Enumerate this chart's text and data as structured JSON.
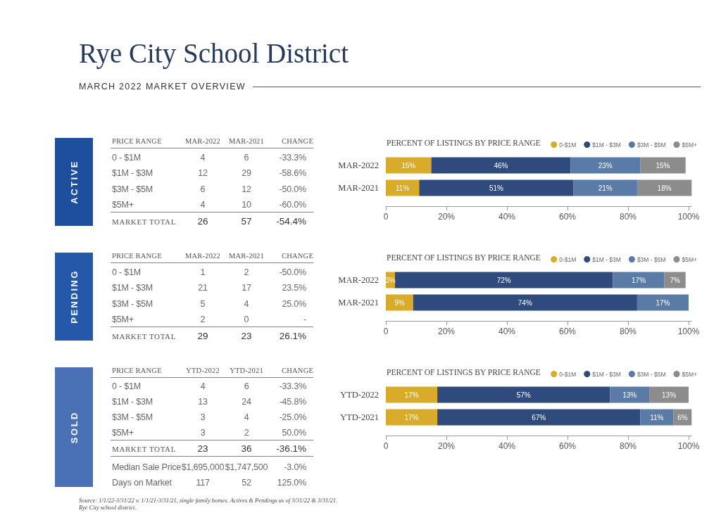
{
  "chart_data": [
    {
      "type": "other",
      "title": "Rye City School District",
      "subtitle": "MARCH 2022 MARKET OVERVIEW"
    },
    {
      "type": "other",
      "title": "ACTIVE",
      "ylabel": "PRICE RANGE",
      "categories": [
        "0 - $1M",
        "$1M - $3M",
        "$3M - $5M",
        "$5M+",
        "MARKET TOTAL"
      ],
      "series": [
        {
          "name": "MAR-2022",
          "values": [
            4,
            12,
            6,
            4,
            26
          ],
          "value_labels": [
            "4",
            "12",
            "6",
            "4",
            "26"
          ]
        },
        {
          "name": "MAR-2021",
          "values": [
            6,
            29,
            12,
            10,
            57
          ],
          "value_labels": [
            "6",
            "29",
            "12",
            "10",
            "57"
          ]
        },
        {
          "name": "CHANGE",
          "values": [
            -33.3,
            -58.6,
            -50.0,
            -60.0,
            -54.4
          ],
          "value_labels": [
            "-33.3%",
            "-58.6%",
            "-50.0%",
            "-60.0%",
            "-54.4%"
          ]
        }
      ]
    },
    {
      "type": "bar",
      "orientation": "horizontal",
      "stacked": true,
      "title": "PERCENT OF LISTINGS BY PRICE RANGE",
      "categories": [
        "MAR-2022",
        "MAR-2021"
      ],
      "series": [
        {
          "name": "0-$1M",
          "color": "#d8ab2b",
          "values": [
            15,
            11
          ],
          "value_labels": [
            "15%",
            "11%"
          ]
        },
        {
          "name": "$1M - $3M",
          "color": "#2f4a7c",
          "values": [
            46,
            51
          ],
          "value_labels": [
            "46%",
            "51%"
          ]
        },
        {
          "name": "$3M - $5M",
          "color": "#5a7ba6",
          "values": [
            23,
            21
          ],
          "value_labels": [
            "23%",
            "21%"
          ]
        },
        {
          "name": "$5M+",
          "color": "#8c8c8c",
          "values": [
            15,
            18
          ],
          "value_labels": [
            "15%",
            "18%"
          ]
        }
      ],
      "xlim": [
        0,
        101
      ],
      "xticks": [
        {
          "value": 0,
          "label": "0"
        },
        {
          "value": 20,
          "label": "20%"
        },
        {
          "value": 40,
          "label": "40%"
        },
        {
          "value": 60,
          "label": "60%"
        },
        {
          "value": 80,
          "label": "80%"
        },
        {
          "value": 100,
          "label": "100%"
        }
      ],
      "legend": "top right",
      "grid": false
    },
    {
      "type": "other",
      "title": "PENDING",
      "ylabel": "PRICE RANGE",
      "categories": [
        "0 - $1M",
        "$1M - $3M",
        "$3M - $5M",
        "$5M+",
        "MARKET TOTAL"
      ],
      "series": [
        {
          "name": "MAR-2022",
          "values": [
            1,
            21,
            5,
            2,
            29
          ],
          "value_labels": [
            "1",
            "21",
            "5",
            "2",
            "29"
          ]
        },
        {
          "name": "MAR-2021",
          "values": [
            2,
            17,
            4,
            0,
            23
          ],
          "value_labels": [
            "2",
            "17",
            "4",
            "0",
            "23"
          ]
        },
        {
          "name": "CHANGE",
          "values": [
            -50.0,
            23.5,
            25.0,
            null,
            26.1
          ],
          "value_labels": [
            "-50.0%",
            "23.5%",
            "25.0%",
            "-",
            "26.1%"
          ]
        }
      ]
    },
    {
      "type": "bar",
      "orientation": "horizontal",
      "stacked": true,
      "title": "PERCENT OF LISTINGS BY PRICE RANGE",
      "categories": [
        "MAR-2022",
        "MAR-2021"
      ],
      "series": [
        {
          "name": "0-$1M",
          "color": "#d8ab2b",
          "values": [
            3,
            9
          ],
          "value_labels": [
            "3%",
            "9%"
          ]
        },
        {
          "name": "$1M - $3M",
          "color": "#2f4a7c",
          "values": [
            72,
            74
          ],
          "value_labels": [
            "72%",
            "74%"
          ]
        },
        {
          "name": "$3M - $5M",
          "color": "#5a7ba6",
          "values": [
            17,
            17
          ],
          "value_labels": [
            "17%",
            "17%"
          ]
        },
        {
          "name": "$5M+",
          "color": "#8c8c8c",
          "values": [
            7,
            null
          ],
          "value_labels": [
            "7%",
            null
          ]
        }
      ],
      "xlim": [
        0,
        101
      ],
      "xticks": [
        {
          "value": 0,
          "label": "0"
        },
        {
          "value": 20,
          "label": "20%"
        },
        {
          "value": 40,
          "label": "40%"
        },
        {
          "value": 60,
          "label": "60%"
        },
        {
          "value": 80,
          "label": "80%"
        },
        {
          "value": 100,
          "label": "100%"
        }
      ],
      "legend": "top right",
      "grid": false
    },
    {
      "type": "other",
      "title": "SOLD",
      "ylabel": "PRICE RANGE",
      "categories": [
        "0 - $1M",
        "$1M - $3M",
        "$3M - $5M",
        "$5M+",
        "MARKET TOTAL",
        "Median Sale Price",
        "Days on Market"
      ],
      "series": [
        {
          "name": "YTD-2022",
          "values": [
            4,
            13,
            3,
            3,
            23,
            1695000,
            117
          ],
          "value_labels": [
            "4",
            "13",
            "3",
            "3",
            "23",
            "$1,695,000",
            "117"
          ]
        },
        {
          "name": "YTD-2021",
          "values": [
            6,
            24,
            4,
            2,
            36,
            1747500,
            52
          ],
          "value_labels": [
            "6",
            "24",
            "4",
            "2",
            "36",
            "$1,747,500",
            "52"
          ]
        },
        {
          "name": "CHANGE",
          "values": [
            -33.3,
            -45.8,
            -25.0,
            50.0,
            -36.1,
            -3.0,
            125.0
          ],
          "value_labels": [
            "-33.3%",
            "-45.8%",
            "-25.0%",
            "50.0%",
            "-36.1%",
            "-3.0%",
            "125.0%"
          ]
        }
      ]
    },
    {
      "type": "bar",
      "orientation": "horizontal",
      "stacked": true,
      "title": "PERCENT OF LISTINGS BY PRICE RANGE",
      "categories": [
        "YTD-2022",
        "YTD-2021"
      ],
      "series": [
        {
          "name": "0-$1M",
          "color": "#d8ab2b",
          "values": [
            17,
            17
          ],
          "value_labels": [
            "17%",
            "17%"
          ]
        },
        {
          "name": "$1M - $3M",
          "color": "#2f4a7c",
          "values": [
            57,
            67
          ],
          "value_labels": [
            "57%",
            "67%"
          ]
        },
        {
          "name": "$3M - $5M",
          "color": "#5a7ba6",
          "values": [
            13,
            11
          ],
          "value_labels": [
            "13%",
            "11%"
          ]
        },
        {
          "name": "$5M+",
          "color": "#8c8c8c",
          "values": [
            13,
            6
          ],
          "value_labels": [
            "13%",
            "6%"
          ]
        }
      ],
      "xlim": [
        0,
        101
      ],
      "xticks": [
        {
          "value": 0,
          "label": "0"
        },
        {
          "value": 20,
          "label": "20%"
        },
        {
          "value": 40,
          "label": "40%"
        },
        {
          "value": 60,
          "label": "60%"
        },
        {
          "value": 80,
          "label": "80%"
        },
        {
          "value": 100,
          "label": "100%"
        }
      ],
      "legend": "top right",
      "grid": false
    },
    {
      "type": "other",
      "annotations": [
        "Source: 1/1/22-3/31/22 v. 1/1/21-3/31/21, single family homes. Actives & Pendings as of 3/31/22 & 3/31/21. Rye City school district."
      ]
    }
  ]
}
